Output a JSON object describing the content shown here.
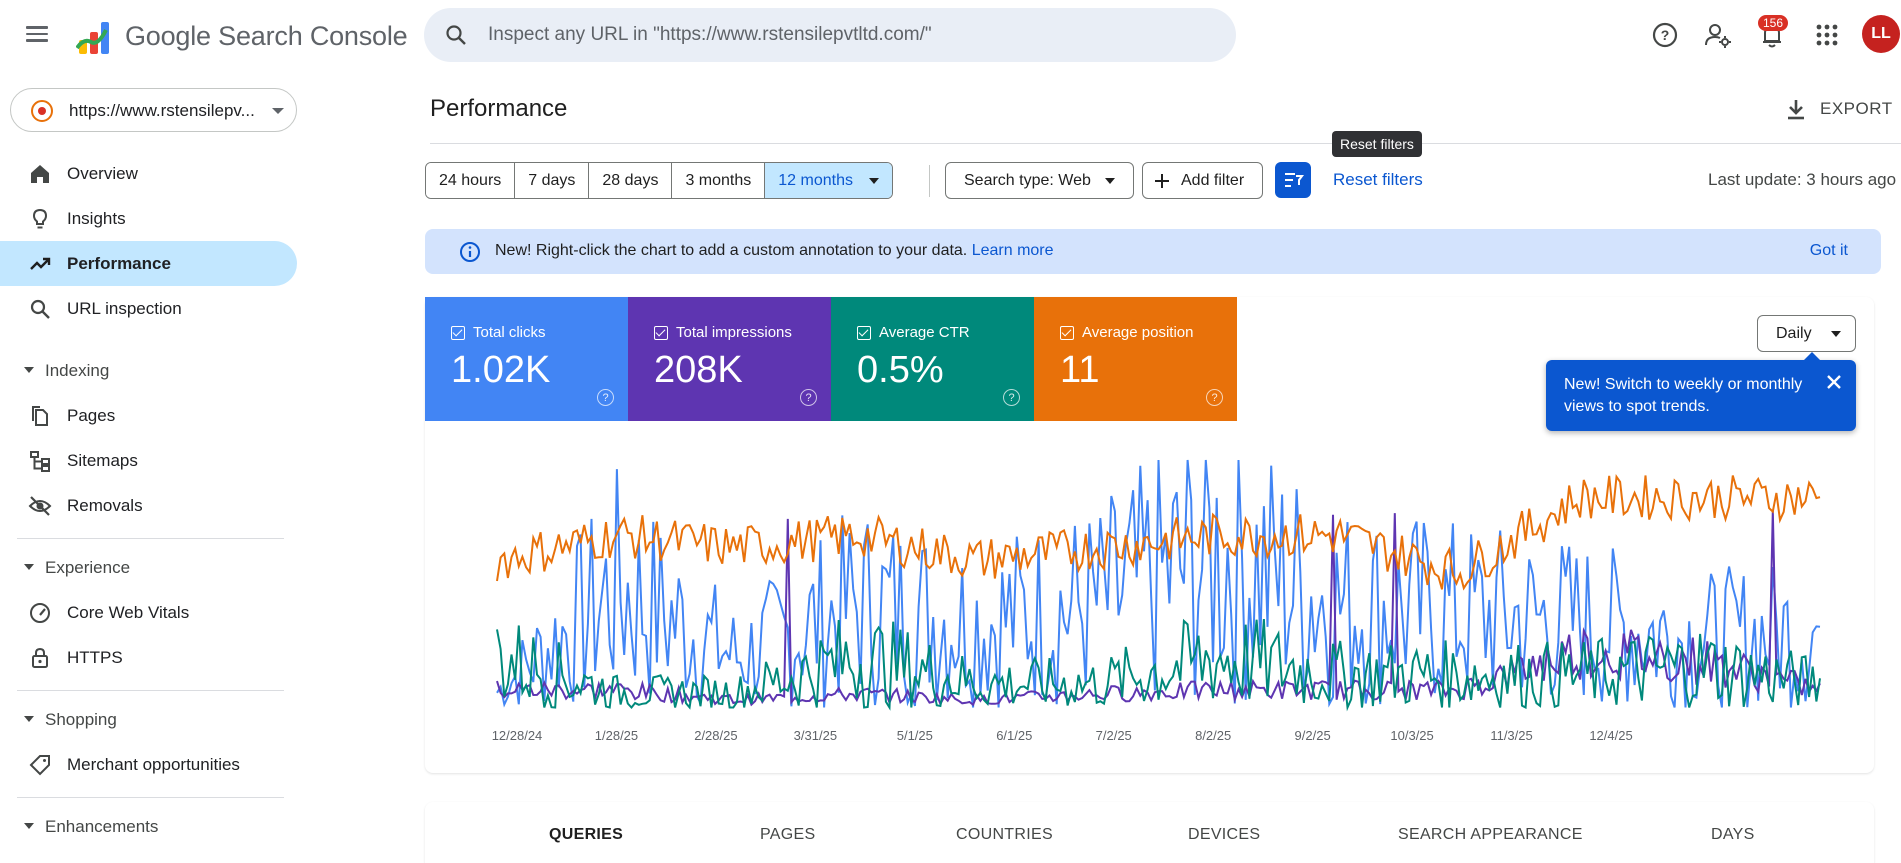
{
  "header": {
    "app_title": "Google Search Console",
    "search_placeholder": "Inspect any URL in \"https://www.rstensilepvtltd.com/\"",
    "notification_count": "156",
    "avatar_initials": "LL"
  },
  "property": {
    "label": "https://www.rstensilepv..."
  },
  "sidebar": {
    "items": [
      {
        "label": "Overview",
        "icon": "home-icon"
      },
      {
        "label": "Insights",
        "icon": "lightbulb-icon"
      },
      {
        "label": "Performance",
        "icon": "trending-up-icon",
        "active": true
      },
      {
        "label": "URL inspection",
        "icon": "search-icon"
      }
    ],
    "sections": [
      {
        "label": "Indexing",
        "items": [
          {
            "label": "Pages"
          },
          {
            "label": "Sitemaps"
          },
          {
            "label": "Removals"
          }
        ]
      },
      {
        "label": "Experience",
        "items": [
          {
            "label": "Core Web Vitals"
          },
          {
            "label": "HTTPS"
          }
        ]
      },
      {
        "label": "Shopping",
        "items": [
          {
            "label": "Merchant opportunities"
          }
        ]
      },
      {
        "label": "Enhancements",
        "items": []
      }
    ]
  },
  "main": {
    "title": "Performance",
    "export_label": "EXPORT",
    "tooltip": "Reset filters",
    "date_ranges": [
      "24 hours",
      "7 days",
      "28 days",
      "3 months",
      "12 months"
    ],
    "selected_range": "12 months",
    "search_type": "Search type: Web",
    "add_filter": "Add filter",
    "reset_filters": "Reset filters",
    "last_update": "Last update: 3 hours ago",
    "banner": {
      "text": "New! Right-click the chart to add a custom annotation to your data. ",
      "link": "Learn more",
      "dismiss": "Got it"
    },
    "metrics": [
      {
        "label": "Total clicks",
        "value": "1.02K",
        "color": "#4285f4",
        "checked": true
      },
      {
        "label": "Total impressions",
        "value": "208K",
        "color": "#5e35b1",
        "checked": true
      },
      {
        "label": "Average CTR",
        "value": "0.5%",
        "color": "#00897b",
        "checked": true
      },
      {
        "label": "Average position",
        "value": "11",
        "color": "#e8710a",
        "checked": true
      }
    ],
    "granularity": "Daily",
    "popover": "New! Switch to weekly or monthly views to spot trends.",
    "tabs": [
      "QUERIES",
      "PAGES",
      "COUNTRIES",
      "DEVICES",
      "SEARCH APPEARANCE",
      "DAYS"
    ]
  },
  "chart_data": {
    "type": "line",
    "x_tick_labels": [
      "12/28/24",
      "1/28/25",
      "2/28/25",
      "3/31/25",
      "5/1/25",
      "6/1/25",
      "7/2/25",
      "8/2/25",
      "9/2/25",
      "10/3/25",
      "11/3/25",
      "12/4/25"
    ],
    "x_range": [
      "12/28/24",
      "12/27/25"
    ],
    "grid": false,
    "series": [
      {
        "name": "Total clicks",
        "color": "#4285f4"
      },
      {
        "name": "Total impressions",
        "color": "#5e35b1"
      },
      {
        "name": "Average CTR",
        "color": "#00897b"
      },
      {
        "name": "Average position",
        "color": "#e8710a"
      }
    ],
    "approx_levels": {
      "Total clicks": [
        0.1,
        0.7,
        0.3,
        0.6,
        0.5,
        0.6,
        0.9,
        0.6,
        0.55,
        0.5,
        0.4,
        0.45
      ],
      "Total impressions": [
        0.1,
        0.1,
        0.05,
        0.08,
        0.05,
        0.08,
        0.1,
        0.1,
        0.1,
        0.3,
        0.25,
        0.1
      ],
      "Average CTR": [
        0.3,
        0.1,
        0.1,
        0.3,
        0.15,
        0.15,
        0.3,
        0.2,
        0.2,
        0.2,
        0.25,
        0.15
      ],
      "Average position": [
        0.6,
        0.7,
        0.65,
        0.7,
        0.6,
        0.65,
        0.7,
        0.7,
        0.55,
        0.85,
        0.85,
        0.85
      ]
    }
  }
}
